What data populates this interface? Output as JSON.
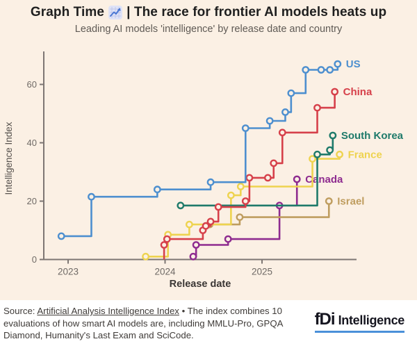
{
  "header": {
    "title_prefix": "Graph Time",
    "title_rest": "| The race for frontier AI models heats up",
    "subtitle": "Leading AI models 'intelligence' by release date and country",
    "emoji_name": "chart-increasing"
  },
  "chart_data": {
    "type": "line",
    "step": true,
    "title": "Graph Time | The race for frontier AI models heats up",
    "subtitle": "Leading AI models 'intelligence' by release date and country",
    "xlabel": "Release date",
    "ylabel": "Intelligence Index",
    "x_ticks": [
      2023,
      2024,
      2025
    ],
    "y_ticks": [
      0,
      20,
      40,
      60
    ],
    "xlim": [
      2022.75,
      2025.97
    ],
    "ylim": [
      0,
      71
    ],
    "grid": false,
    "legend_position": "end-of-line-labels",
    "marker_style": "open-circle",
    "series": [
      {
        "name": "Canada",
        "color": "#8e2b8f",
        "points": [
          [
            2024.29,
            1
          ],
          [
            2024.32,
            5
          ],
          [
            2024.65,
            7
          ],
          [
            2025.18,
            18.5
          ],
          [
            2025.36,
            27.5
          ]
        ]
      },
      {
        "name": "Israel",
        "color": "#bf9d5f",
        "points": [
          [
            2024.46,
            12
          ],
          [
            2024.77,
            14.5
          ],
          [
            2025.69,
            20
          ]
        ]
      },
      {
        "name": "France",
        "color": "#eed34f",
        "points": [
          [
            2023.8,
            1
          ],
          [
            2024.03,
            8.5
          ],
          [
            2024.25,
            12
          ],
          [
            2024.68,
            22
          ],
          [
            2024.78,
            25
          ],
          [
            2025.52,
            34.5
          ],
          [
            2025.8,
            36
          ]
        ]
      },
      {
        "name": "South Korea",
        "color": "#1e7a6a",
        "points": [
          [
            2024.16,
            18.5
          ],
          [
            2025.57,
            36
          ],
          [
            2025.7,
            37.5
          ],
          [
            2025.73,
            42.5
          ]
        ]
      },
      {
        "name": "China",
        "color": "#d6404a",
        "points": [
          [
            2023.99,
            0,
            0
          ],
          [
            2023.99,
            5
          ],
          [
            2024.02,
            7
          ],
          [
            2024.39,
            10
          ],
          [
            2024.42,
            11.5
          ],
          [
            2024.47,
            13
          ],
          [
            2024.55,
            18
          ],
          [
            2024.83,
            20
          ],
          [
            2024.87,
            28
          ],
          [
            2025.06,
            28
          ],
          [
            2025.12,
            33
          ],
          [
            2025.21,
            43.5
          ],
          [
            2025.57,
            52
          ],
          [
            2025.75,
            57.5
          ]
        ]
      },
      {
        "name": "US",
        "color": "#4d8fcf",
        "points": [
          [
            2022.93,
            8
          ],
          [
            2023.24,
            21.5
          ],
          [
            2023.92,
            24
          ],
          [
            2024.47,
            26.5
          ],
          [
            2024.83,
            45
          ],
          [
            2025.08,
            47.5
          ],
          [
            2025.24,
            50.5
          ],
          [
            2025.3,
            57
          ],
          [
            2025.45,
            65
          ],
          [
            2025.61,
            65
          ],
          [
            2025.7,
            65
          ],
          [
            2025.78,
            67
          ]
        ]
      }
    ]
  },
  "footer": {
    "source_prefix": "Source: ",
    "source_link": "Artificial Analysis Intelligence Index",
    "source_rest": " • The index combines 10 evaluations of how smart AI models are, including MMLU-Pro, GPQA Diamond, Humanity's Last Exam and SciCode.",
    "logo_fdi": "fDi",
    "logo_rest": "Intelligence"
  },
  "colors": {
    "background": "#fbf0e4",
    "footer_background": "#ffffff",
    "axis": "#7d7673",
    "tick_text": "#6f6a66",
    "logo_underline": "#4a90d9"
  }
}
